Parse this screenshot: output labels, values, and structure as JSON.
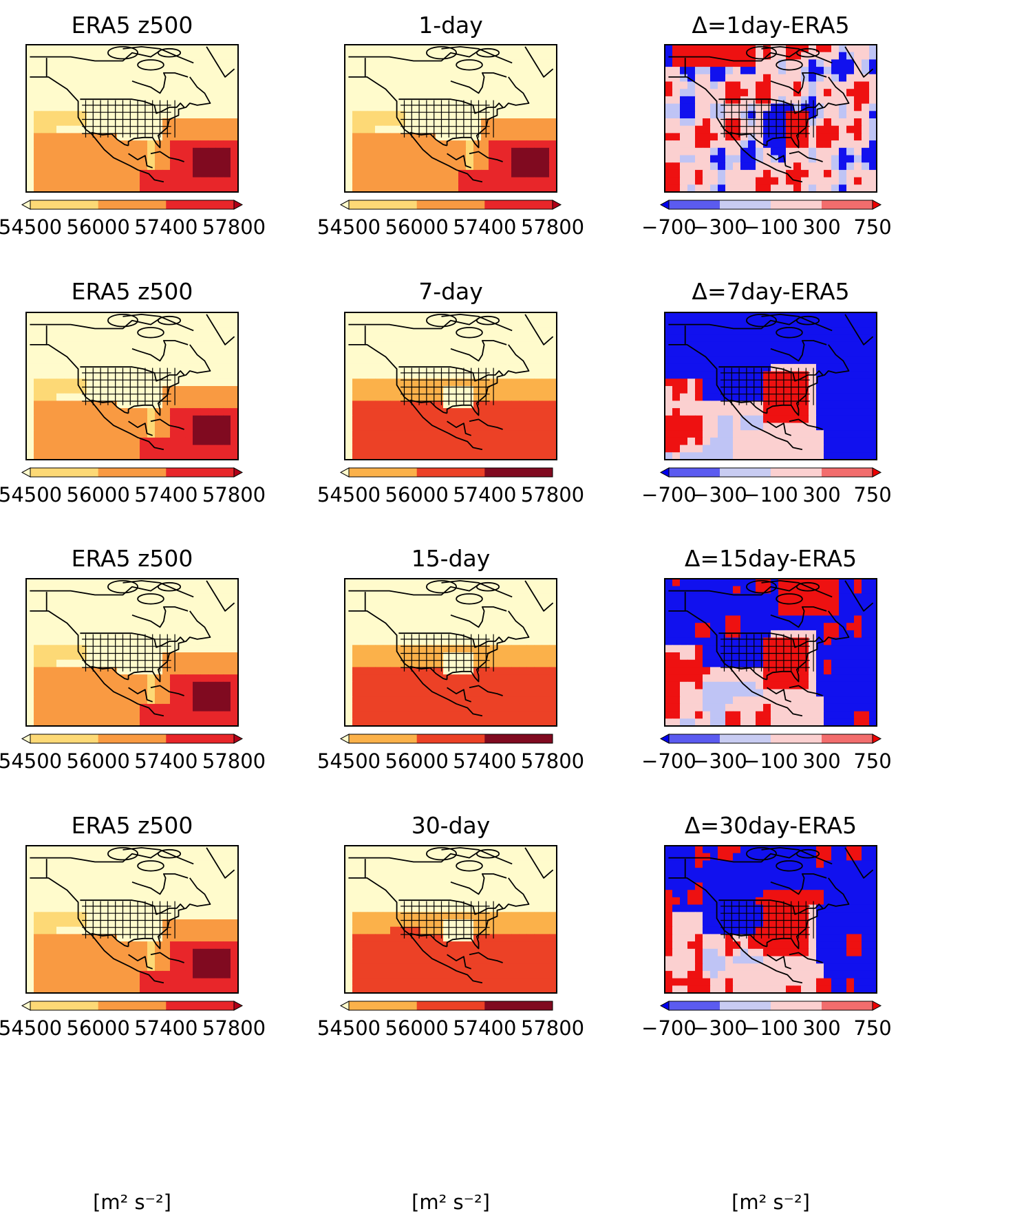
{
  "units_label": "[m² s⁻²]",
  "rows": [
    {
      "panels": [
        {
          "title": "ERA5 z500",
          "field": "era5",
          "cbar": "abs",
          "ticks": [
            "54500",
            "56000",
            "57400",
            "57800"
          ],
          "colors": [
            "#fdd976",
            "#f99a42",
            "#e8262a"
          ],
          "extend": "both"
        },
        {
          "title": "1-day",
          "field": "d1",
          "cbar": "abs",
          "ticks": [
            "54500",
            "56000",
            "57400",
            "57800"
          ],
          "colors": [
            "#fdd976",
            "#f99a42",
            "#e8262a"
          ],
          "extend": "both"
        },
        {
          "title": "Δ=1day-ERA5",
          "field": "diff1",
          "cbar": "diff",
          "ticks": [
            "−700",
            "−300",
            "−100",
            "300",
            "750"
          ],
          "colors": [
            "#5b5bf0",
            "#c8ccf2",
            "#fbd0d0",
            "#f26d6d"
          ],
          "extend": "both"
        }
      ]
    },
    {
      "panels": [
        {
          "title": "ERA5 z500",
          "field": "era5",
          "cbar": "abs",
          "ticks": [
            "54500",
            "56000",
            "57400",
            "57800"
          ],
          "colors": [
            "#fdd976",
            "#f99a42",
            "#e8262a"
          ],
          "extend": "both"
        },
        {
          "title": "7-day",
          "field": "d7",
          "cbar": "abs",
          "ticks": [
            "54500",
            "56000",
            "57400",
            "57800"
          ],
          "colors": [
            "#fbb14a",
            "#ec4126",
            "#800a20"
          ],
          "extend": "min"
        },
        {
          "title": "Δ=7day-ERA5",
          "field": "diff7",
          "cbar": "diff",
          "ticks": [
            "−700",
            "−300",
            "−100",
            "300",
            "750"
          ],
          "colors": [
            "#5b5bf0",
            "#c8ccf2",
            "#fbd0d0",
            "#f26d6d"
          ],
          "extend": "both"
        }
      ]
    },
    {
      "panels": [
        {
          "title": "ERA5 z500",
          "field": "era5",
          "cbar": "abs",
          "ticks": [
            "54500",
            "56000",
            "57400",
            "57800"
          ],
          "colors": [
            "#fdd976",
            "#f99a42",
            "#e8262a"
          ],
          "extend": "both"
        },
        {
          "title": "15-day",
          "field": "d15",
          "cbar": "abs",
          "ticks": [
            "54500",
            "56000",
            "57400",
            "57800"
          ],
          "colors": [
            "#fbb14a",
            "#ec4126",
            "#800a20"
          ],
          "extend": "min"
        },
        {
          "title": "Δ=15day-ERA5",
          "field": "diff15",
          "cbar": "diff",
          "ticks": [
            "−700",
            "−300",
            "−100",
            "300",
            "750"
          ],
          "colors": [
            "#5b5bf0",
            "#c8ccf2",
            "#fbd0d0",
            "#f26d6d"
          ],
          "extend": "both"
        }
      ]
    },
    {
      "panels": [
        {
          "title": "ERA5 z500",
          "field": "era5",
          "cbar": "abs",
          "ticks": [
            "54500",
            "56000",
            "57400",
            "57800"
          ],
          "colors": [
            "#fdd976",
            "#f99a42",
            "#e8262a"
          ],
          "extend": "both"
        },
        {
          "title": "30-day",
          "field": "d30",
          "cbar": "abs",
          "ticks": [
            "54500",
            "56000",
            "57400",
            "57800"
          ],
          "colors": [
            "#fbb14a",
            "#ec4126",
            "#800a20"
          ],
          "extend": "min"
        },
        {
          "title": "Δ=30day-ERA5",
          "field": "diff30",
          "cbar": "diff",
          "ticks": [
            "−700",
            "−300",
            "−100",
            "300",
            "750"
          ],
          "colors": [
            "#5b5bf0",
            "#c8ccf2",
            "#fbd0d0",
            "#f26d6d"
          ],
          "extend": "both"
        }
      ]
    }
  ],
  "chart_data": {
    "type": "heatmap",
    "panel_titles": [
      "ERA5 z500",
      "1-day",
      "Δ=1day-ERA5",
      "ERA5 z500",
      "7-day",
      "Δ=7day-ERA5",
      "ERA5 z500",
      "15-day",
      "Δ=15day-ERA5",
      "ERA5 z500",
      "30-day",
      "Δ=30day-ERA5"
    ],
    "absolute_levels": [
      54500,
      56000,
      57400,
      57800
    ],
    "difference_levels": [
      -700,
      -300,
      -100,
      300,
      750
    ],
    "units": "[m² s⁻²]",
    "colormaps": {
      "absolute": "YlOrRd",
      "difference": "bwr"
    }
  }
}
